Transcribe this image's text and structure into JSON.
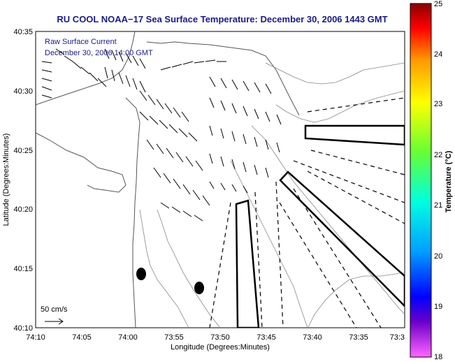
{
  "map": {
    "title": "RU COOL  NOAA−17  Sea Surface Temperature:  December 30, 2006 1443 GMT",
    "legend_line1": "Raw Surface Current",
    "legend_line2": "December 30, 2006 14:00 GMT",
    "scale_label": "50 cm/s",
    "xlabel": "Longitude (Degrees:Minutes)",
    "ylabel": "Latitude (Degrees:Minutes)",
    "x_ticks": [
      "74:10",
      "74:05",
      "74:00",
      "73:55",
      "73:50",
      "73:45",
      "73:40",
      "73:35",
      "73:3"
    ],
    "y_ticks": [
      "40:35",
      "40:30",
      "40:25",
      "40:20",
      "40:15",
      "40:10"
    ]
  },
  "colorbar": {
    "label": "Temperature (°C)",
    "ticks": [
      "25",
      "24",
      "23",
      "22",
      "21",
      "20",
      "19",
      "18"
    ],
    "min": 18,
    "max": 25,
    "colors": [
      "#ff55ff",
      "#5a00c8",
      "#0000ff",
      "#00aaff",
      "#00ffe6",
      "#66ff33",
      "#ffff00",
      "#ff9900",
      "#ff0000",
      "#8b0000"
    ]
  }
}
